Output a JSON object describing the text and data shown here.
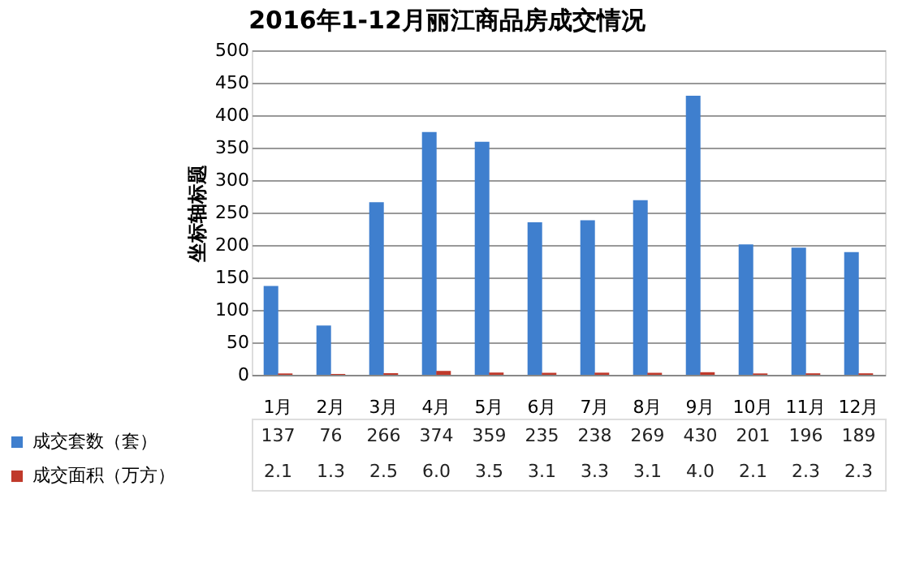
{
  "chart_data": {
    "type": "bar",
    "title": "2016年1-12月丽江商品房成交情况",
    "ylabel": "坐标轴标题",
    "categories": [
      "1月",
      "2月",
      "3月",
      "4月",
      "5月",
      "6月",
      "7月",
      "8月",
      "9月",
      "10月",
      "11月",
      "12月"
    ],
    "series": [
      {
        "name": "成交套数（套）",
        "color": "#3f7fce",
        "values": [
          137,
          76,
          266,
          374,
          359,
          235,
          238,
          269,
          430,
          201,
          196,
          189
        ],
        "value_labels": [
          "137",
          "76",
          "266",
          "374",
          "359",
          "235",
          "238",
          "269",
          "430",
          "201",
          "196",
          "189"
        ]
      },
      {
        "name": "成交面积（万方）",
        "color": "#c0392b",
        "values": [
          2.1,
          1.3,
          2.5,
          6.0,
          3.5,
          3.1,
          3.3,
          3.1,
          4.0,
          2.1,
          2.3,
          2.3
        ],
        "value_labels": [
          "2.1",
          "1.3",
          "2.5",
          "6.0",
          "3.5",
          "3.1",
          "3.3",
          "3.1",
          "4.0",
          "2.1",
          "2.3",
          "2.3"
        ]
      }
    ],
    "ylim": [
      0,
      500
    ],
    "yticks": [
      0,
      50,
      100,
      150,
      200,
      250,
      300,
      350,
      400,
      450,
      500
    ],
    "grid": "y",
    "legend": "bottom left"
  }
}
